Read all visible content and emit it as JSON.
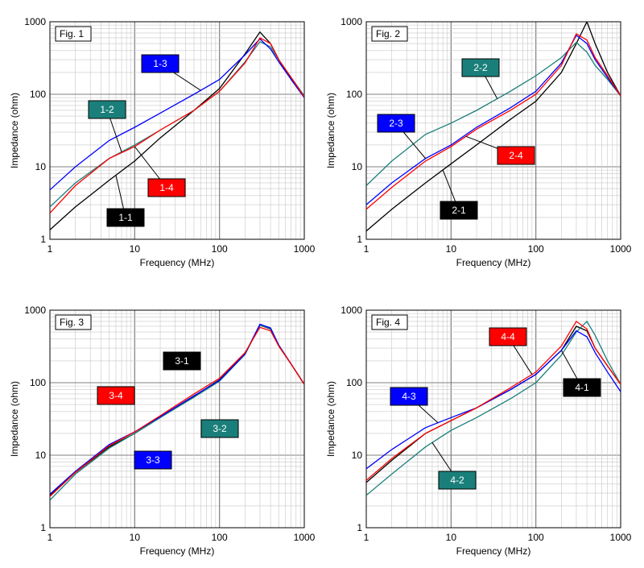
{
  "chart_data": [
    {
      "type": "line",
      "title": "Fig. 1",
      "xlabel": "Frequency (MHz)",
      "ylabel": "Impedance (ohm)",
      "x_scale": "log",
      "y_scale": "log",
      "xlim": [
        1,
        1000
      ],
      "ylim": [
        1,
        1000
      ],
      "grid": true,
      "x_ticks": [
        "1",
        "10",
        "100",
        "1000"
      ],
      "y_ticks": [
        "1",
        "10",
        "100",
        "1000"
      ],
      "series": [
        {
          "name": "1-1",
          "color": "#000000",
          "x": [
            1,
            2,
            5,
            10,
            20,
            50,
            100,
            200,
            300,
            400,
            500,
            700,
            1000
          ],
          "y": [
            1.35,
            2.8,
            6.5,
            12,
            25,
            60,
            120,
            360,
            720,
            500,
            300,
            160,
            90
          ]
        },
        {
          "name": "1-2",
          "color": "#1a7f7a",
          "x": [
            1,
            2,
            5,
            10,
            20,
            50,
            100,
            200,
            300,
            400,
            500,
            700,
            1000
          ],
          "y": [
            2.8,
            6,
            13,
            20,
            32,
            60,
            110,
            280,
            530,
            450,
            300,
            170,
            95
          ]
        },
        {
          "name": "1-3",
          "color": "#0000ff",
          "x": [
            1,
            2,
            5,
            10,
            20,
            50,
            100,
            200,
            300,
            400,
            500,
            700,
            1000
          ],
          "y": [
            4.8,
            10,
            23,
            35,
            55,
            100,
            160,
            350,
            580,
            420,
            280,
            160,
            90
          ]
        },
        {
          "name": "1-4",
          "color": "#ff0000",
          "x": [
            1,
            2,
            5,
            10,
            20,
            50,
            100,
            200,
            300,
            400,
            500,
            700,
            1000
          ],
          "y": [
            2.3,
            5.5,
            13,
            19,
            32,
            60,
            110,
            270,
            600,
            500,
            300,
            170,
            92
          ]
        }
      ],
      "annotations": [
        {
          "text": "1-1",
          "box": "#000000",
          "target_series": "1-1"
        },
        {
          "text": "1-2",
          "box": "#1a7f7a",
          "target_series": "1-2"
        },
        {
          "text": "1-3",
          "box": "#0000ff",
          "target_series": "1-3"
        },
        {
          "text": "1-4",
          "box": "#ff0000",
          "target_series": "1-4"
        }
      ]
    },
    {
      "type": "line",
      "title": "Fig. 2",
      "xlabel": "Frequency (MHz)",
      "ylabel": "Impedance (ohm)",
      "x_scale": "log",
      "y_scale": "log",
      "xlim": [
        1,
        1000
      ],
      "ylim": [
        1,
        1000
      ],
      "grid": true,
      "x_ticks": [
        "1",
        "10",
        "100",
        "1000"
      ],
      "y_ticks": [
        "1",
        "10",
        "100",
        "1000"
      ],
      "series": [
        {
          "name": "2-1",
          "color": "#000000",
          "x": [
            1,
            2,
            5,
            10,
            20,
            50,
            100,
            200,
            300,
            400,
            500,
            700,
            1000
          ],
          "y": [
            1.3,
            2.6,
            6,
            11,
            20,
            45,
            80,
            200,
            500,
            1000,
            500,
            200,
            95
          ]
        },
        {
          "name": "2-2",
          "color": "#1a7f7a",
          "x": [
            1,
            2,
            5,
            10,
            20,
            50,
            100,
            200,
            300,
            400,
            500,
            700,
            1000
          ],
          "y": [
            5.5,
            12,
            28,
            40,
            60,
            110,
            180,
            320,
            520,
            380,
            250,
            160,
            95
          ]
        },
        {
          "name": "2-3",
          "color": "#0000ff",
          "x": [
            1,
            2,
            5,
            10,
            20,
            50,
            100,
            200,
            300,
            400,
            500,
            700,
            1000
          ],
          "y": [
            3,
            6,
            13,
            20,
            35,
            65,
            110,
            270,
            650,
            500,
            300,
            170,
            95
          ]
        },
        {
          "name": "2-4",
          "color": "#ff0000",
          "x": [
            1,
            2,
            5,
            10,
            20,
            50,
            100,
            200,
            300,
            400,
            500,
            700,
            1000
          ],
          "y": [
            2.6,
            5.2,
            12,
            19,
            33,
            60,
            100,
            250,
            680,
            560,
            320,
            180,
            95
          ]
        }
      ],
      "annotations": [
        {
          "text": "2-1",
          "box": "#000000",
          "target_series": "2-1"
        },
        {
          "text": "2-2",
          "box": "#1a7f7a",
          "target_series": "2-2"
        },
        {
          "text": "2-3",
          "box": "#0000ff",
          "target_series": "2-3"
        },
        {
          "text": "2-4",
          "box": "#ff0000",
          "target_series": "2-4"
        }
      ]
    },
    {
      "type": "line",
      "title": "Fig. 3",
      "xlabel": "Frequency (MHz)",
      "ylabel": "Impedance (ohm)",
      "x_scale": "log",
      "y_scale": "log",
      "xlim": [
        1,
        1000
      ],
      "ylim": [
        1,
        1000
      ],
      "grid": true,
      "x_ticks": [
        "1",
        "10",
        "100",
        "1000"
      ],
      "y_ticks": [
        "1",
        "10",
        "100",
        "1000"
      ],
      "series": [
        {
          "name": "3-1",
          "color": "#000000",
          "x": [
            1,
            2,
            5,
            10,
            20,
            50,
            100,
            200,
            300,
            400,
            500,
            700,
            1000
          ],
          "y": [
            2.8,
            5.8,
            13,
            20,
            33,
            65,
            110,
            250,
            620,
            550,
            320,
            180,
            95
          ]
        },
        {
          "name": "3-2",
          "color": "#1a7f7a",
          "x": [
            1,
            2,
            5,
            10,
            20,
            50,
            100,
            200,
            300,
            400,
            500,
            700,
            1000
          ],
          "y": [
            2.4,
            5.5,
            12.5,
            20,
            33,
            63,
            105,
            245,
            620,
            560,
            330,
            180,
            95
          ]
        },
        {
          "name": "3-3",
          "color": "#0000ff",
          "x": [
            1,
            2,
            5,
            10,
            20,
            50,
            100,
            200,
            300,
            400,
            500,
            700,
            1000
          ],
          "y": [
            2.9,
            6,
            14,
            21,
            34,
            66,
            108,
            250,
            640,
            570,
            330,
            180,
            95
          ]
        },
        {
          "name": "3-4",
          "color": "#ff0000",
          "x": [
            1,
            2,
            5,
            10,
            20,
            50,
            100,
            200,
            300,
            400,
            500,
            700,
            1000
          ],
          "y": [
            2.7,
            5.8,
            13.5,
            21,
            35,
            70,
            115,
            260,
            580,
            520,
            320,
            180,
            95
          ]
        }
      ],
      "annotations": [
        {
          "text": "3-1",
          "box": "#000000",
          "target_series": "3-1"
        },
        {
          "text": "3-2",
          "box": "#1a7f7a",
          "target_series": "3-2"
        },
        {
          "text": "3-3",
          "box": "#0000ff",
          "target_series": "3-3"
        },
        {
          "text": "3-4",
          "box": "#ff0000",
          "target_series": "3-4"
        }
      ]
    },
    {
      "type": "line",
      "title": "Fig. 4",
      "xlabel": "Frequency (MHz)",
      "ylabel": "Impedance (ohm)",
      "x_scale": "log",
      "y_scale": "log",
      "xlim": [
        1,
        1000
      ],
      "ylim": [
        1,
        1000
      ],
      "grid": true,
      "x_ticks": [
        "1",
        "10",
        "100",
        "1000"
      ],
      "y_ticks": [
        "1",
        "10",
        "100",
        "1000"
      ],
      "series": [
        {
          "name": "4-1",
          "color": "#000000",
          "x": [
            1,
            2,
            5,
            10,
            20,
            50,
            100,
            200,
            300,
            400,
            500,
            700,
            1000
          ],
          "y": [
            4.2,
            8.5,
            20,
            30,
            45,
            80,
            130,
            280,
            600,
            520,
            300,
            170,
            95
          ]
        },
        {
          "name": "4-2",
          "color": "#1a7f7a",
          "x": [
            1,
            2,
            5,
            10,
            20,
            50,
            100,
            200,
            300,
            400,
            500,
            700,
            1000
          ],
          "y": [
            2.8,
            5.5,
            13,
            22,
            33,
            60,
            100,
            240,
            500,
            700,
            450,
            200,
            95
          ]
        },
        {
          "name": "4-3",
          "color": "#0000ff",
          "x": [
            1,
            2,
            5,
            10,
            20,
            50,
            100,
            200,
            300,
            400,
            500,
            700,
            1000
          ],
          "y": [
            6.5,
            12,
            24,
            33,
            45,
            80,
            130,
            280,
            520,
            430,
            260,
            140,
            75
          ]
        },
        {
          "name": "4-4",
          "color": "#ff0000",
          "x": [
            1,
            2,
            5,
            10,
            20,
            50,
            100,
            200,
            300,
            400,
            500,
            700,
            1000
          ],
          "y": [
            4.5,
            9,
            20,
            30,
            45,
            85,
            140,
            320,
            700,
            550,
            300,
            170,
            95
          ]
        }
      ],
      "annotations": [
        {
          "text": "4-1",
          "box": "#000000",
          "target_series": "4-1"
        },
        {
          "text": "4-2",
          "box": "#1a7f7a",
          "target_series": "4-2"
        },
        {
          "text": "4-3",
          "box": "#0000ff",
          "target_series": "4-3"
        },
        {
          "text": "4-4",
          "box": "#ff0000",
          "target_series": "4-4"
        }
      ]
    }
  ]
}
